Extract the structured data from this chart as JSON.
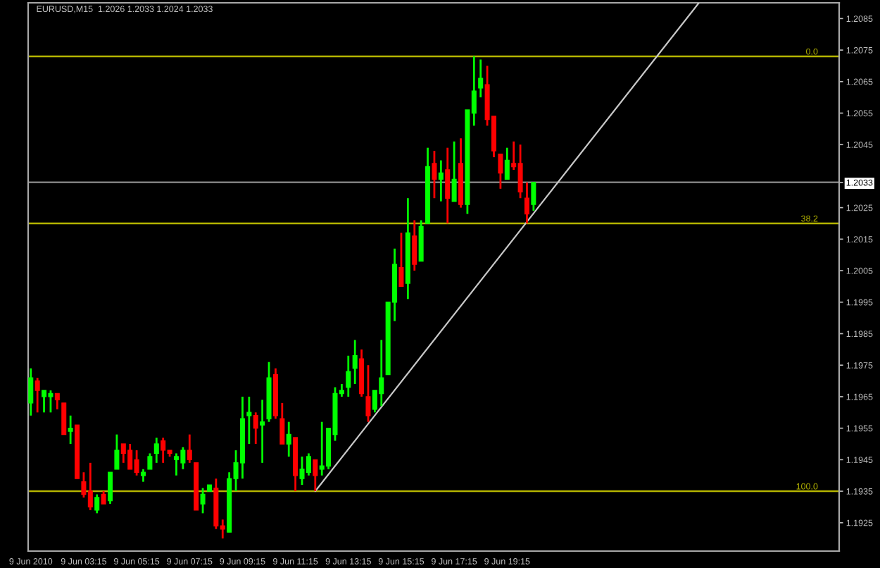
{
  "chart_data": {
    "type": "candlestick",
    "title": "EURUSD,M15  1.2026 1.2033 1.2024 1.2033",
    "x": [
      "2010-06-09T01:15",
      "2010-06-09T01:30",
      "2010-06-09T01:45",
      "2010-06-09T02:00",
      "2010-06-09T02:15",
      "2010-06-09T02:30",
      "2010-06-09T02:45",
      "2010-06-09T03:00",
      "2010-06-09T03:15",
      "2010-06-09T03:30",
      "2010-06-09T03:45",
      "2010-06-09T04:00",
      "2010-06-09T04:15",
      "2010-06-09T04:30",
      "2010-06-09T04:45",
      "2010-06-09T05:00",
      "2010-06-09T05:15",
      "2010-06-09T05:30",
      "2010-06-09T05:45",
      "2010-06-09T06:00",
      "2010-06-09T06:15",
      "2010-06-09T06:30",
      "2010-06-09T06:45",
      "2010-06-09T07:00",
      "2010-06-09T07:15",
      "2010-06-09T07:30",
      "2010-06-09T07:45",
      "2010-06-09T08:00",
      "2010-06-09T08:15",
      "2010-06-09T08:30",
      "2010-06-09T08:45",
      "2010-06-09T09:00",
      "2010-06-09T09:15",
      "2010-06-09T09:30",
      "2010-06-09T09:45",
      "2010-06-09T10:00",
      "2010-06-09T10:15",
      "2010-06-09T10:30",
      "2010-06-09T10:45",
      "2010-06-09T11:00",
      "2010-06-09T11:15",
      "2010-06-09T11:30",
      "2010-06-09T11:45",
      "2010-06-09T12:00",
      "2010-06-09T12:15",
      "2010-06-09T12:30",
      "2010-06-09T12:45",
      "2010-06-09T13:00",
      "2010-06-09T13:15",
      "2010-06-09T13:30",
      "2010-06-09T13:45",
      "2010-06-09T14:00",
      "2010-06-09T14:15",
      "2010-06-09T14:30",
      "2010-06-09T14:45",
      "2010-06-09T15:00",
      "2010-06-09T15:15",
      "2010-06-09T15:30",
      "2010-06-09T15:45",
      "2010-06-09T16:00",
      "2010-06-09T16:15",
      "2010-06-09T16:30",
      "2010-06-09T16:45",
      "2010-06-09T17:00",
      "2010-06-09T17:15",
      "2010-06-09T17:30",
      "2010-06-09T17:45",
      "2010-06-09T18:00",
      "2010-06-09T18:15",
      "2010-06-09T18:30",
      "2010-06-09T18:45",
      "2010-06-09T19:00",
      "2010-06-09T19:15",
      "2010-06-09T19:30",
      "2010-06-09T19:45",
      "2010-06-09T20:00",
      "2010-06-09T20:15"
    ],
    "ohlc": [
      [
        1.1963,
        1.1974,
        1.1959,
        1.1971
      ],
      [
        1.197,
        1.1971,
        1.196,
        1.1967
      ],
      [
        1.1965,
        1.1967,
        1.196,
        1.1967
      ],
      [
        1.1965,
        1.1967,
        1.196,
        1.1966
      ],
      [
        1.1966,
        1.1966,
        1.1961,
        1.1964
      ],
      [
        1.1963,
        1.1963,
        1.1953,
        1.1953
      ],
      [
        1.1954,
        1.1959,
        1.195,
        1.1955
      ],
      [
        1.1956,
        1.1956,
        1.1939,
        1.1939
      ],
      [
        1.1938,
        1.1941,
        1.1933,
        1.1934
      ],
      [
        1.1935,
        1.1944,
        1.1929,
        1.193
      ],
      [
        1.1929,
        1.1934,
        1.1928,
        1.1933
      ],
      [
        1.1934,
        1.1935,
        1.1931,
        1.1931
      ],
      [
        1.1932,
        1.1941,
        1.1931,
        1.1941
      ],
      [
        1.1942,
        1.1953,
        1.1942,
        1.1948
      ],
      [
        1.195,
        1.195,
        1.1944,
        1.1947
      ],
      [
        1.1948,
        1.195,
        1.1942,
        1.1942
      ],
      [
        1.1945,
        1.1948,
        1.194,
        1.1941
      ],
      [
        1.194,
        1.1942,
        1.1938,
        1.1941
      ],
      [
        1.1942,
        1.1947,
        1.1942,
        1.1946
      ],
      [
        1.1947,
        1.1952,
        1.1944,
        1.195
      ],
      [
        1.1951,
        1.1952,
        1.1944,
        1.1948
      ],
      [
        1.1948,
        1.1948,
        1.1946,
        1.1947
      ],
      [
        1.1945,
        1.1947,
        1.194,
        1.1946
      ],
      [
        1.1944,
        1.1949,
        1.1942,
        1.1948
      ],
      [
        1.1948,
        1.1953,
        1.1944,
        1.1945
      ],
      [
        1.1944,
        1.1944,
        1.1929,
        1.1929
      ],
      [
        1.1931,
        1.1936,
        1.1928,
        1.1934
      ],
      [
        1.1935,
        1.1937,
        1.1935,
        1.1937
      ],
      [
        1.1936,
        1.1939,
        1.1923,
        1.1924
      ],
      [
        1.1924,
        1.1926,
        1.192,
        1.1923
      ],
      [
        1.1922,
        1.1941,
        1.1922,
        1.1939
      ],
      [
        1.1939,
        1.1948,
        1.1935,
        1.1944
      ],
      [
        1.1944,
        1.1965,
        1.1939,
        1.1958
      ],
      [
        1.1959,
        1.1965,
        1.195,
        1.196
      ],
      [
        1.1959,
        1.196,
        1.195,
        1.1955
      ],
      [
        1.1956,
        1.1964,
        1.1944,
        1.1957
      ],
      [
        1.1958,
        1.1976,
        1.1957,
        1.1971
      ],
      [
        1.1972,
        1.1974,
        1.1958,
        1.1959
      ],
      [
        1.1958,
        1.1963,
        1.195,
        1.195
      ],
      [
        1.195,
        1.1957,
        1.1946,
        1.1953
      ],
      [
        1.1952,
        1.1952,
        1.1935,
        1.194
      ],
      [
        1.1939,
        1.1946,
        1.1937,
        1.1942
      ],
      [
        1.1941,
        1.1947,
        1.194,
        1.1946
      ],
      [
        1.1945,
        1.1945,
        1.1935,
        1.194
      ],
      [
        1.1942,
        1.1957,
        1.194,
        1.1943
      ],
      [
        1.1943,
        1.1955,
        1.1942,
        1.1955
      ],
      [
        1.1953,
        1.1968,
        1.1951,
        1.1966
      ],
      [
        1.1966,
        1.1969,
        1.1965,
        1.1967
      ],
      [
        1.1968,
        1.1978,
        1.1965,
        1.1973
      ],
      [
        1.1974,
        1.1983,
        1.1969,
        1.1978
      ],
      [
        1.1977,
        1.198,
        1.1965,
        1.1966
      ],
      [
        1.1965,
        1.1975,
        1.1957,
        1.1959
      ],
      [
        1.1961,
        1.1967,
        1.196,
        1.1967
      ],
      [
        1.1966,
        1.1983,
        1.1962,
        1.1971
      ],
      [
        1.1972,
        1.1995,
        1.1972,
        1.1995
      ],
      [
        1.1995,
        1.2012,
        1.1989,
        1.2007
      ],
      [
        1.2006,
        1.2017,
        1.2,
        1.2
      ],
      [
        1.2001,
        1.2028,
        1.1996,
        1.2017
      ],
      [
        1.2016,
        1.2021,
        1.2005,
        1.2007
      ],
      [
        1.2008,
        1.2021,
        1.2008,
        1.2019
      ],
      [
        1.202,
        1.2044,
        1.202,
        1.2038
      ],
      [
        1.2039,
        1.2043,
        1.2028,
        1.2034
      ],
      [
        1.2034,
        1.204,
        1.2027,
        1.2036
      ],
      [
        1.2037,
        1.2044,
        1.202,
        1.2028
      ],
      [
        1.2027,
        1.2046,
        1.2027,
        1.2034
      ],
      [
        1.2039,
        1.2047,
        1.2025,
        1.2026
      ],
      [
        1.2026,
        1.2056,
        1.2023,
        1.2056
      ],
      [
        1.2055,
        1.2073,
        1.2051,
        1.2062
      ],
      [
        1.2063,
        1.2072,
        1.206,
        1.2066
      ],
      [
        1.2064,
        1.207,
        1.2051,
        1.2053
      ],
      [
        1.2054,
        1.2054,
        1.2041,
        1.2043
      ],
      [
        1.2042,
        1.2042,
        1.2031,
        1.2036
      ],
      [
        1.2034,
        1.2044,
        1.2034,
        1.204
      ],
      [
        1.2039,
        1.2046,
        1.2037,
        1.2038
      ],
      [
        1.2039,
        1.2045,
        1.2028,
        1.203
      ],
      [
        1.2028,
        1.2033,
        1.202,
        1.2023
      ],
      [
        1.2026,
        1.2033,
        1.2024,
        1.2033
      ]
    ],
    "colors": [
      "#00ff00",
      "#ff0000",
      "#00ff00",
      "#00ff00",
      "#ff0000",
      "#ff0000",
      "#00ff00",
      "#ff0000",
      "#ff0000",
      "#ff0000",
      "#00ff00",
      "#ff0000",
      "#00ff00",
      "#00ff00",
      "#ff0000",
      "#ff0000",
      "#ff0000",
      "#00ff00",
      "#00ff00",
      "#00ff00",
      "#ff0000",
      "#ff0000",
      "#00ff00",
      "#00ff00",
      "#ff0000",
      "#ff0000",
      "#00ff00",
      "#00ff00",
      "#ff0000",
      "#ff0000",
      "#00ff00",
      "#00ff00",
      "#00ff00",
      "#00ff00",
      "#ff0000",
      "#00ff00",
      "#00ff00",
      "#ff0000",
      "#ff0000",
      "#00ff00",
      "#ff0000",
      "#00ff00",
      "#00ff00",
      "#ff0000",
      "#00ff00",
      "#00ff00",
      "#00ff00",
      "#00ff00",
      "#00ff00",
      "#00ff00",
      "#ff0000",
      "#ff0000",
      "#00ff00",
      "#00ff00",
      "#00ff00",
      "#00ff00",
      "#ff0000",
      "#00ff00",
      "#ff0000",
      "#00ff00",
      "#00ff00",
      "#ff0000",
      "#00ff00",
      "#ff0000",
      "#00ff00",
      "#ff0000",
      "#00ff00",
      "#00ff00",
      "#00ff00",
      "#ff0000",
      "#ff0000",
      "#ff0000",
      "#00ff00",
      "#ff0000",
      "#ff0000",
      "#ff0000",
      "#00ff00"
    ],
    "series": [
      {
        "type": "line",
        "color": "#c8c8c8",
        "x": [
          "2010-06-09T12:00",
          "2010-06-10T02:30"
        ],
        "values": [
          1.1935,
          1.209
        ]
      }
    ],
    "ref_lines": [
      {
        "axis": "y",
        "value": 1.2073,
        "color": "#b4b400"
      },
      {
        "axis": "y",
        "value": 1.202,
        "color": "#b4b400"
      },
      {
        "axis": "y",
        "value": 1.1935,
        "color": "#b4b400"
      },
      {
        "axis": "y",
        "value": 1.2033,
        "color": "#808080"
      }
    ],
    "xlim": [
      "2010-06-09T01:09",
      "2010-06-10T07:48"
    ],
    "xticks": [
      {
        "value": "2010-06-09T01:15",
        "label": "9 Jun 2010"
      },
      {
        "value": "2010-06-09T03:15",
        "label": "9 Jun 03:15"
      },
      {
        "value": "2010-06-09T05:15",
        "label": "9 Jun 05:15"
      },
      {
        "value": "2010-06-09T07:15",
        "label": "9 Jun 07:15"
      },
      {
        "value": "2010-06-09T09:15",
        "label": "9 Jun 09:15"
      },
      {
        "value": "2010-06-09T11:15",
        "label": "9 Jun 11:15"
      },
      {
        "value": "2010-06-09T13:15",
        "label": "9 Jun 13:15"
      },
      {
        "value": "2010-06-09T15:15",
        "label": "9 Jun 15:15"
      },
      {
        "value": "2010-06-09T17:15",
        "label": "9 Jun 17:15"
      },
      {
        "value": "2010-06-09T19:15",
        "label": "9 Jun 19:15"
      }
    ],
    "ylim": [
      1.1916,
      1.209
    ],
    "yticks": [
      1.2085,
      1.2075,
      1.2065,
      1.2055,
      1.2045,
      {
        "value": 1.2033,
        "label": "1.2033"
      },
      1.2025,
      1.2015,
      1.2005,
      1.1995,
      1.1985,
      1.1975,
      1.1965,
      1.1955,
      1.1945,
      1.1935,
      1.1925
    ],
    "annotations": [
      {
        "text": "0.0",
        "x": "2010-06-10T07:00",
        "y": 1.2073
      },
      {
        "text": "38.2",
        "x": "2010-06-10T07:00",
        "y": 1.202
      },
      {
        "text": "100.0",
        "x": "2010-06-10T07:00",
        "y": 1.1935
      }
    ],
    "grid": false,
    "legend": false
  }
}
